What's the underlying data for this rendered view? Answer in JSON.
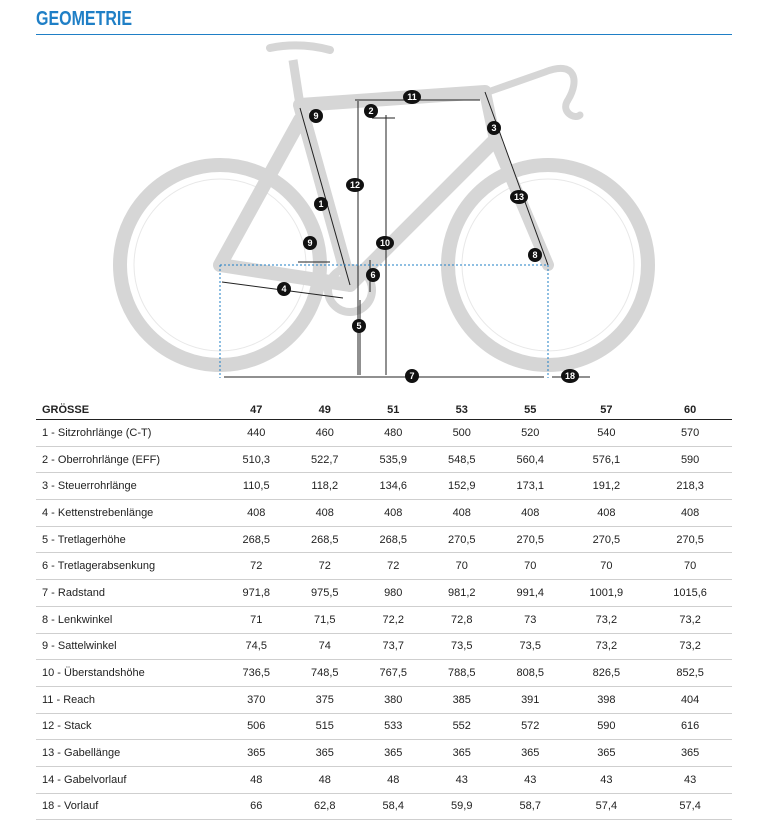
{
  "header": {
    "title": "GEOMETRIE"
  },
  "diagram": {
    "markers": [
      "9",
      "2",
      "11",
      "3",
      "12",
      "1",
      "13",
      "10",
      "9",
      "8",
      "6",
      "4",
      "5",
      "7",
      "18"
    ]
  },
  "table": {
    "columns": [
      "GRÖSSE",
      "47",
      "49",
      "51",
      "53",
      "55",
      "57",
      "60"
    ],
    "rows": [
      [
        "1 - Sitzrohrlänge (C-T)",
        "440",
        "460",
        "480",
        "500",
        "520",
        "540",
        "570"
      ],
      [
        "2 - Oberrohrlänge (EFF)",
        "510,3",
        "522,7",
        "535,9",
        "548,5",
        "560,4",
        "576,1",
        "590"
      ],
      [
        "3 - Steuerrohrlänge",
        "110,5",
        "118,2",
        "134,6",
        "152,9",
        "173,1",
        "191,2",
        "218,3"
      ],
      [
        "4 - Kettenstrebenlänge",
        "408",
        "408",
        "408",
        "408",
        "408",
        "408",
        "408"
      ],
      [
        "5 - Tretlagerhöhe",
        "268,5",
        "268,5",
        "268,5",
        "270,5",
        "270,5",
        "270,5",
        "270,5"
      ],
      [
        "6 - Tretlagerabsenkung",
        "72",
        "72",
        "72",
        "70",
        "70",
        "70",
        "70"
      ],
      [
        "7 - Radstand",
        "971,8",
        "975,5",
        "980",
        "981,2",
        "991,4",
        "1001,9",
        "1015,6"
      ],
      [
        "8 - Lenkwinkel",
        "71",
        "71,5",
        "72,2",
        "72,8",
        "73",
        "73,2",
        "73,2"
      ],
      [
        "9 - Sattelwinkel",
        "74,5",
        "74",
        "73,7",
        "73,5",
        "73,5",
        "73,2",
        "73,2"
      ],
      [
        "10 - Überstandshöhe",
        "736,5",
        "748,5",
        "767,5",
        "788,5",
        "808,5",
        "826,5",
        "852,5"
      ],
      [
        "11 - Reach",
        "370",
        "375",
        "380",
        "385",
        "391",
        "398",
        "404"
      ],
      [
        "12 - Stack",
        "506",
        "515",
        "533",
        "552",
        "572",
        "590",
        "616"
      ],
      [
        "13 - Gabellänge",
        "365",
        "365",
        "365",
        "365",
        "365",
        "365",
        "365"
      ],
      [
        "14 - Gabelvorlauf",
        "48",
        "48",
        "48",
        "43",
        "43",
        "43",
        "43"
      ],
      [
        "18 - Vorlauf",
        "66",
        "62,8",
        "58,4",
        "59,9",
        "58,7",
        "57,4",
        "57,4"
      ]
    ]
  }
}
